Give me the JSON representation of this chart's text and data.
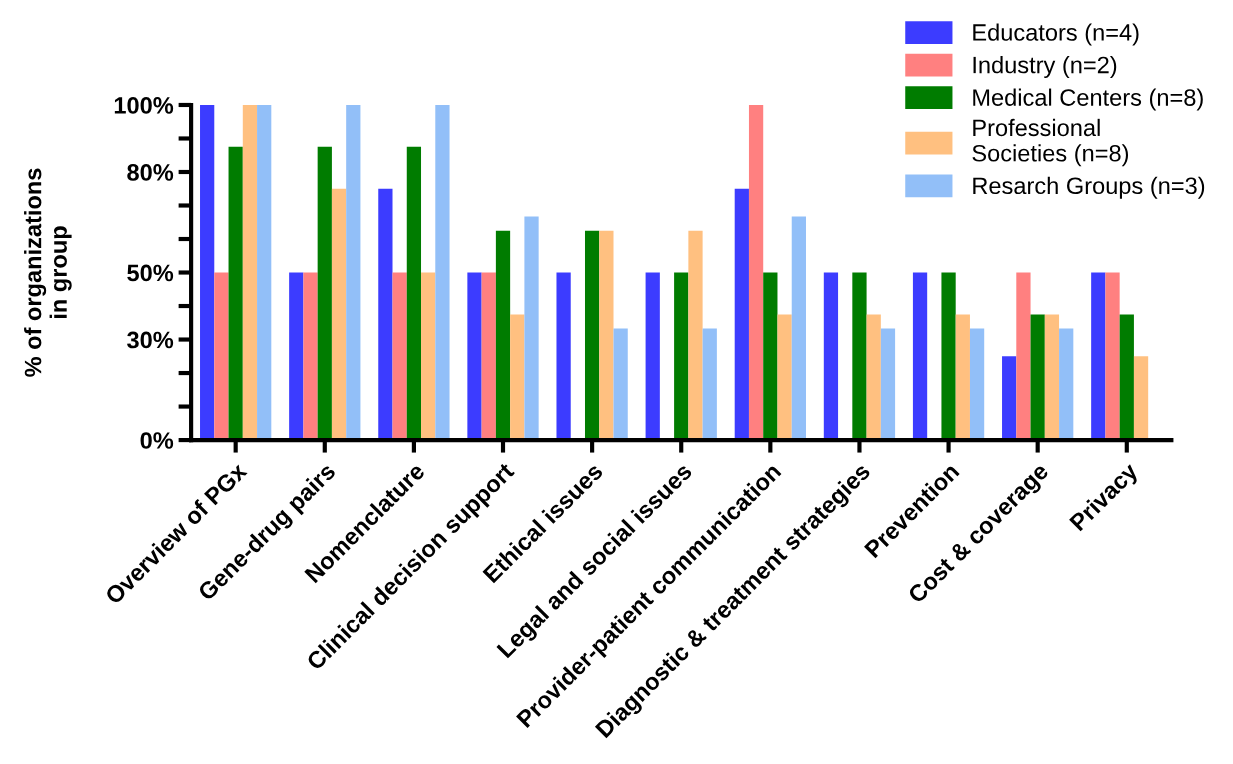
{
  "chart_data": {
    "type": "bar",
    "ylabel": "% of organizations\nin group",
    "categories": [
      "Overview of PGx",
      "Gene-drug pairs",
      "Nomenclature",
      "Clinical decision support",
      "Ethical issues",
      "Legal and social issues",
      "Provider-patient communication",
      "Diagnostic & treatment strategies",
      "Prevention",
      "Cost & coverage",
      "Privacy"
    ],
    "series": [
      {
        "name": "Educators (n=4)",
        "color": "#3c3cff",
        "values": [
          100,
          50,
          75,
          50,
          50,
          50,
          75,
          50,
          50,
          25,
          50
        ]
      },
      {
        "name": "Industry (n=2)",
        "color": "#ff8080",
        "values": [
          50,
          50,
          50,
          50,
          0,
          0,
          100,
          0,
          0,
          50,
          50
        ]
      },
      {
        "name": "Medical Centers (n=8)",
        "color": "#007c00",
        "values": [
          87.5,
          87.5,
          87.5,
          62.5,
          62.5,
          50,
          50,
          50,
          50,
          37.5,
          37.5
        ]
      },
      {
        "name": "Professional\nSocieties (n=8)",
        "color": "#ffc080",
        "values": [
          100,
          75,
          50,
          37.5,
          62.5,
          62.5,
          37.5,
          37.5,
          37.5,
          37.5,
          25
        ]
      },
      {
        "name": "Resarch Groups (n=3)",
        "color": "#92bff8",
        "values": [
          100,
          100,
          100,
          66.7,
          33.3,
          33.3,
          66.7,
          33.3,
          33.3,
          33.3,
          0
        ]
      }
    ],
    "ylim": [
      0,
      100
    ],
    "yticks": [
      {
        "value": 0,
        "label": "0%"
      },
      {
        "value": 10,
        "label": null
      },
      {
        "value": 20,
        "label": null
      },
      {
        "value": 30,
        "label": "30%"
      },
      {
        "value": 40,
        "label": null
      },
      {
        "value": 50,
        "label": "50%"
      },
      {
        "value": 60,
        "label": null
      },
      {
        "value": 70,
        "label": null
      },
      {
        "value": 80,
        "label": "80%"
      },
      {
        "value": 90,
        "label": null
      },
      {
        "value": 100,
        "label": "100%"
      }
    ],
    "legend": "top right",
    "grid": false
  }
}
